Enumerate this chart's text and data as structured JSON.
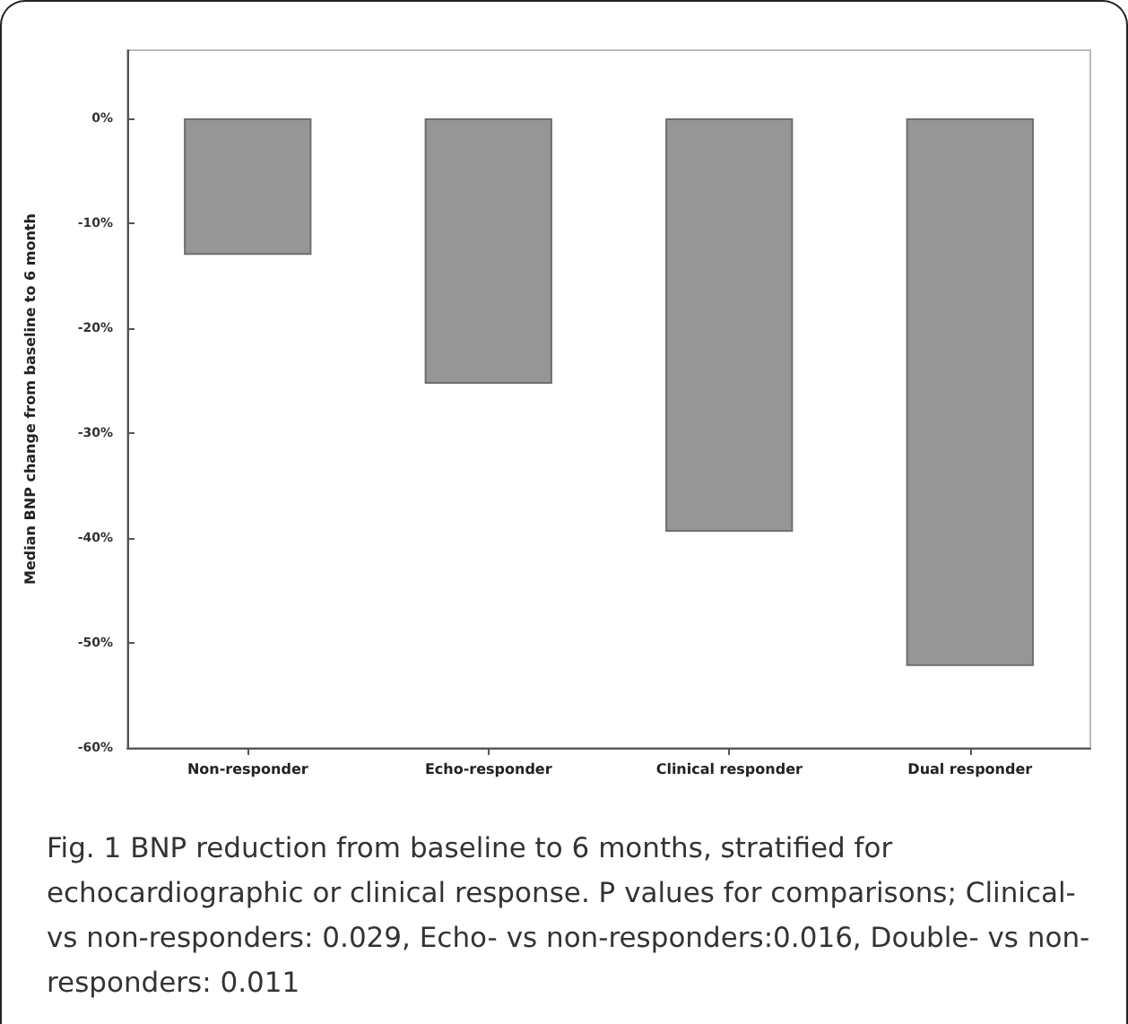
{
  "chart_data": {
    "type": "bar",
    "categories": [
      "Non-responder",
      "Echo-responder",
      "Clinical responder",
      "Dual responder"
    ],
    "values": [
      -13,
      -25.3,
      -39.4,
      -52.2
    ],
    "color": "#969696",
    "ylabel": "Median BNP change from baseline to 6 month",
    "ylim": [
      -60,
      6.5
    ],
    "yticks": [
      {
        "value": -60,
        "label": "-60%"
      },
      {
        "value": -50,
        "label": "-50%"
      },
      {
        "value": -40,
        "label": "-40%"
      },
      {
        "value": -30,
        "label": "-30%"
      },
      {
        "value": -20,
        "label": "-20%"
      },
      {
        "value": -10,
        "label": "-10%"
      },
      {
        "value": 0,
        "label": "0%"
      }
    ],
    "grid": false,
    "annotations": [
      "Fig. 1 BNP reduction from baseline to 6 months, stratified for echocardiographic or clinical response. P values for comparisons; Clinical- vs non-responders: 0.029, Echo- vs non-responders:0.016, Double- vs non-responders: 0.011"
    ]
  }
}
